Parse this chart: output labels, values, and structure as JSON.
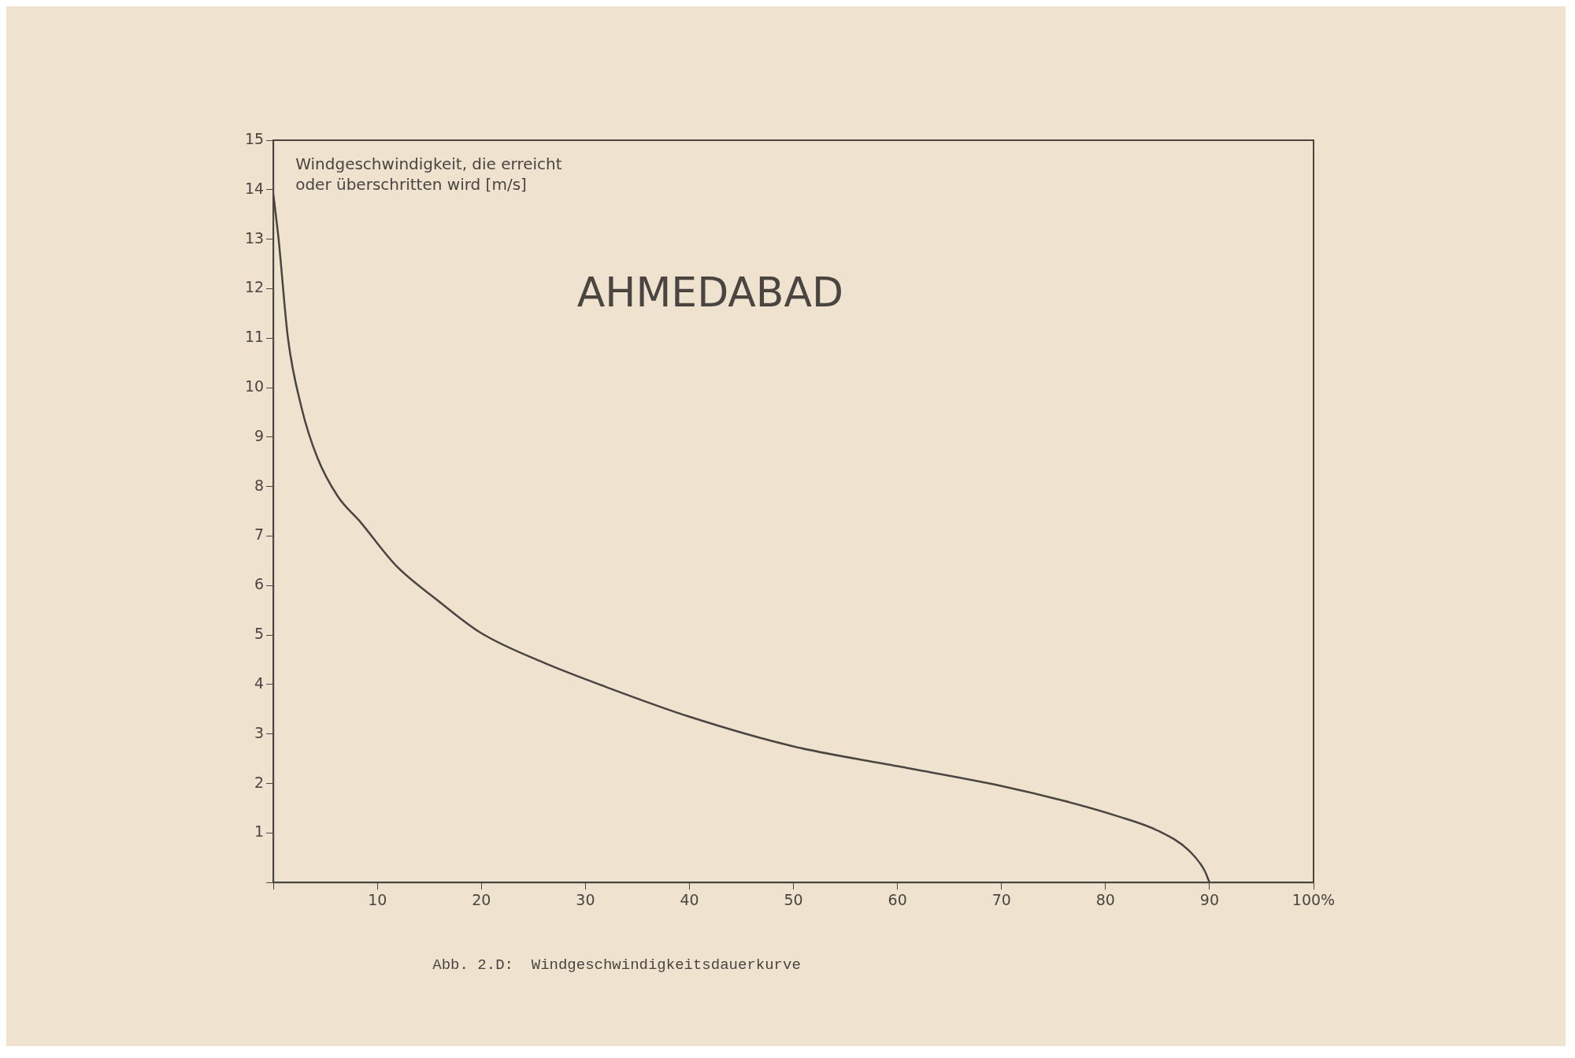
{
  "chart_data": {
    "type": "line",
    "title": "AHMEDABAD",
    "ylabel": "Windgeschwindigkeit, die erreicht oder überschritten wird [m/s]",
    "annotations": [
      "Abb. 2.D:  Windgeschwindigkeitsdauerkurve"
    ],
    "x": [
      0,
      0.5,
      1.4,
      2.7,
      4.2,
      6.2,
      8.3,
      11.8,
      15.8,
      19.9,
      25.9,
      32,
      40,
      50,
      60,
      70,
      76,
      81,
      85,
      88,
      89.5,
      90
    ],
    "series": [
      {
        "color": "#4a4540",
        "values": [
          13.9,
          13,
          11,
          9.6,
          8.6,
          7.8,
          7.3,
          6.4,
          5.7,
          5.05,
          4.45,
          3.95,
          3.35,
          2.75,
          2.35,
          1.95,
          1.65,
          1.35,
          1.05,
          0.65,
          0.25,
          0
        ]
      }
    ],
    "xlim": [
      0,
      100
    ],
    "ylim": [
      0,
      15
    ],
    "xticks": [
      {
        "value": 0,
        "label": null
      },
      10,
      20,
      30,
      40,
      50,
      60,
      70,
      80,
      90,
      {
        "value": 100,
        "label": "100%"
      }
    ],
    "yticks": [
      {
        "value": 0,
        "label": null
      },
      1,
      2,
      3,
      4,
      5,
      6,
      7,
      8,
      9,
      10,
      11,
      12,
      13,
      14,
      15
    ],
    "grid": false,
    "legend": false,
    "marker": "none",
    "line_style": "solid"
  }
}
